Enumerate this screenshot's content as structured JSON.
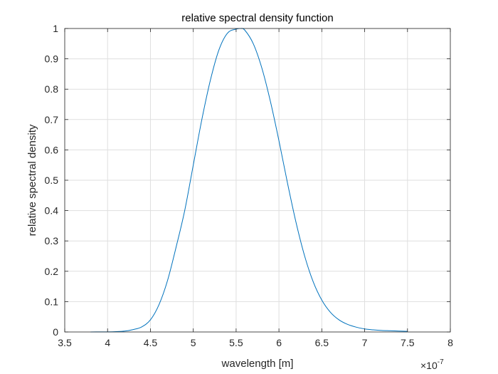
{
  "chart_data": {
    "type": "line",
    "title": "relative spectral density function",
    "xlabel": "wavelength [m]",
    "ylabel": "relative spectral density",
    "x_multiplier": {
      "base": "×10",
      "exponent": "-7"
    },
    "xlim": [
      3.5,
      8
    ],
    "ylim": [
      0,
      1
    ],
    "x_ticks": [
      3.5,
      4,
      4.5,
      5,
      5.5,
      6,
      6.5,
      7,
      7.5,
      8
    ],
    "x_tick_labels": [
      "3.5",
      "4",
      "4.5",
      "5",
      "5.5",
      "6",
      "6.5",
      "7",
      "7.5",
      "8"
    ],
    "y_ticks": [
      0,
      0.1,
      0.2,
      0.3,
      0.4,
      0.5,
      0.6,
      0.7,
      0.8,
      0.9,
      1
    ],
    "y_tick_labels": [
      "0",
      "0.1",
      "0.2",
      "0.3",
      "0.4",
      "0.5",
      "0.6",
      "0.7",
      "0.8",
      "0.9",
      "1"
    ],
    "grid": true,
    "colors": {
      "line": "#0072BD",
      "grid": "#DFDFDF",
      "axis": "#262626"
    },
    "series": [
      {
        "x": [
          3.8,
          3.9,
          4.0,
          4.1,
          4.2,
          4.3,
          4.4,
          4.5,
          4.6,
          4.7,
          4.8,
          4.9,
          5.0,
          5.1,
          5.2,
          5.3,
          5.4,
          5.5,
          5.55,
          5.6,
          5.7,
          5.8,
          5.9,
          6.0,
          6.1,
          6.2,
          6.3,
          6.4,
          6.5,
          6.6,
          6.7,
          6.8,
          6.9,
          7.0,
          7.1,
          7.2,
          7.3,
          7.4,
          7.5
        ],
        "y": [
          0.0001,
          0.0002,
          0.0004,
          0.0012,
          0.003,
          0.008,
          0.017,
          0.04,
          0.09,
          0.17,
          0.28,
          0.4,
          0.55,
          0.7,
          0.83,
          0.93,
          0.985,
          0.998,
          1.0,
          0.995,
          0.95,
          0.87,
          0.76,
          0.63,
          0.49,
          0.36,
          0.25,
          0.165,
          0.105,
          0.065,
          0.04,
          0.025,
          0.016,
          0.01,
          0.007,
          0.005,
          0.004,
          0.003,
          0.002
        ]
      }
    ]
  }
}
